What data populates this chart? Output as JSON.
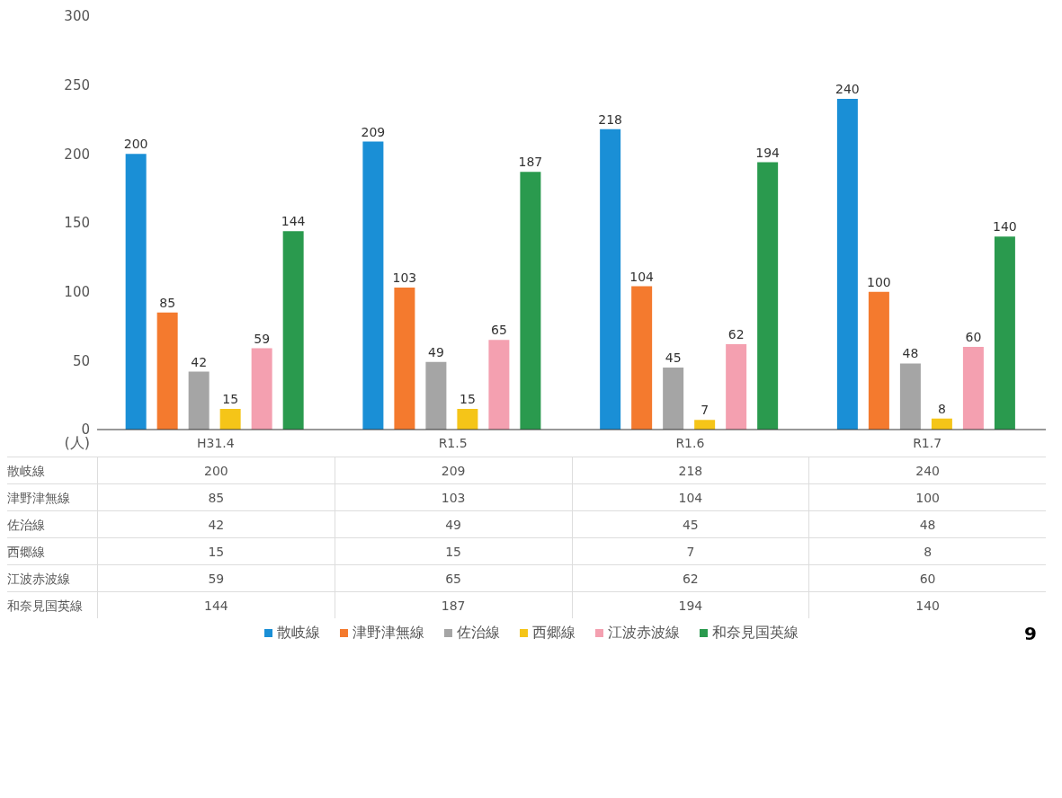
{
  "chart_data": [
    {
      "type": "bar",
      "ylabel": "(人)",
      "categories": [
        "H31.4",
        "R1.5",
        "R1.6",
        "R1.7"
      ],
      "series": [
        {
          "name": "散岐線",
          "color": "#1a8fd6",
          "values": [
            200,
            209,
            218,
            240
          ],
          "value_labels": [
            "200",
            "209",
            "218",
            "240"
          ]
        },
        {
          "name": "津野津無線",
          "color": "#f47a2e",
          "values": [
            85,
            103,
            104,
            100
          ],
          "value_labels": [
            "85",
            "103",
            "104",
            "100"
          ]
        },
        {
          "name": "佐治線",
          "color": "#a5a5a5",
          "values": [
            42,
            49,
            45,
            48
          ],
          "value_labels": [
            "42",
            "49",
            "45",
            "48"
          ]
        },
        {
          "name": "西郷線",
          "color": "#f5c518",
          "values": [
            15,
            15,
            7,
            8
          ],
          "value_labels": [
            "15",
            "15",
            "7",
            "8"
          ]
        },
        {
          "name": "江波赤波線",
          "color": "#f4a0b0",
          "values": [
            59,
            65,
            62,
            60
          ],
          "value_labels": [
            "59",
            "65",
            "62",
            "60"
          ]
        },
        {
          "name": "和奈見国英線",
          "color": "#2a9a4e",
          "values": [
            144,
            187,
            194,
            140
          ],
          "value_labels": [
            "144",
            "187",
            "194",
            "140"
          ]
        }
      ],
      "ylim": [
        0,
        300
      ],
      "yticks": [
        0,
        50,
        100,
        150,
        200,
        250,
        300
      ],
      "legend": "bottom",
      "annotations": [
        "9"
      ]
    },
    {
      "type": "heatmap",
      "categories": [
        null,
        null,
        null,
        null
      ],
      "y_categories": [
        "散岐線",
        "津野津無線",
        "佐治線",
        "西郷線",
        "江波赤波線",
        "和奈見国英線"
      ],
      "cells": [
        [
          200,
          209,
          218,
          240
        ],
        [
          85,
          103,
          104,
          100
        ],
        [
          42,
          49,
          45,
          48
        ],
        [
          15,
          15,
          7,
          8
        ],
        [
          59,
          65,
          62,
          60
        ],
        [
          144,
          187,
          194,
          140
        ]
      ],
      "data_labels": true
    }
  ]
}
